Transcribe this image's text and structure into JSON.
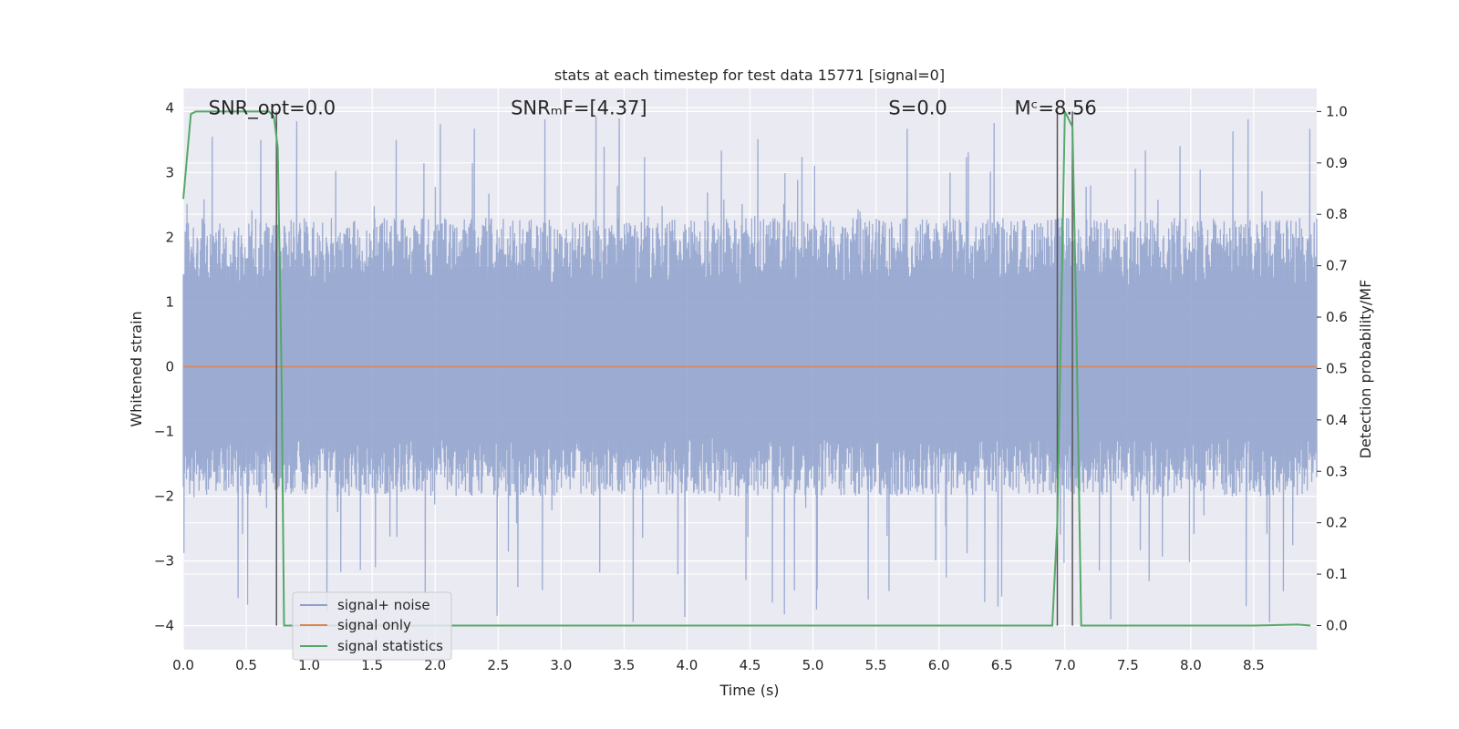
{
  "chart_data": {
    "type": "line",
    "title": "stats at each timestep for test data 15771 [signal=0]",
    "xlabel": "Time (s)",
    "ylabel_left": "Whitened strain",
    "ylabel_right": "Detection probability/MF",
    "xlim": [
      0.0,
      9.0
    ],
    "ylim_left": [
      -4.37,
      4.3
    ],
    "ylim_right": [
      -0.047,
      1.045
    ],
    "xticks": [
      "0.0",
      "0.5",
      "1.0",
      "1.5",
      "2.0",
      "2.5",
      "3.0",
      "3.5",
      "4.0",
      "4.5",
      "5.0",
      "5.5",
      "6.0",
      "6.5",
      "7.0",
      "7.5",
      "8.0",
      "8.5"
    ],
    "yticks_left": [
      "4",
      "3",
      "2",
      "1",
      "0",
      "−1",
      "−2",
      "−3",
      "−4"
    ],
    "yticks_right": [
      "1.0",
      "0.9",
      "0.8",
      "0.7",
      "0.6",
      "0.5",
      "0.4",
      "0.3",
      "0.2",
      "0.1",
      "0.0"
    ],
    "grid": true,
    "legend_position": "lower-left",
    "annotations": [
      {
        "text": "SNR_opt=0.0",
        "x": 0.2,
        "y": 4.0
      },
      {
        "text": "SNRₘF=[4.37]",
        "x": 2.6,
        "y": 4.0
      },
      {
        "text": "S=0.0",
        "x": 5.6,
        "y": 4.0
      },
      {
        "text": "Mᶜ=8.56",
        "x": 6.6,
        "y": 4.0
      }
    ],
    "series": [
      {
        "name": "signal+ noise",
        "color": "#8da0cb",
        "axis": "left",
        "noise_profile": {
          "x_start": 0.0,
          "x_end": 9.0,
          "typical_min": -2.0,
          "typical_max": 2.3,
          "extreme_min": -4.0,
          "extreme_max": 3.9
        }
      },
      {
        "name": "signal only",
        "color": "#dd8452",
        "axis": "left",
        "x": [
          0.0,
          9.0
        ],
        "y": [
          0.0,
          0.0
        ]
      },
      {
        "name": "signal statistics",
        "color": "#55a868",
        "axis": "right",
        "x": [
          0.0,
          0.06,
          0.1,
          0.2,
          0.3,
          0.4,
          0.5,
          0.6,
          0.68,
          0.72,
          0.75,
          0.78,
          0.8,
          0.85,
          1.0,
          2.0,
          3.0,
          4.0,
          5.0,
          6.0,
          6.5,
          6.9,
          6.94,
          7.0,
          7.06,
          7.09,
          7.13,
          7.2,
          8.0,
          8.5,
          8.85,
          8.95
        ],
        "y": [
          0.83,
          0.995,
          1.0,
          1.0,
          1.0,
          1.0,
          1.0,
          1.0,
          1.0,
          0.99,
          0.93,
          0.5,
          0.0,
          0.0,
          0.0,
          0.0,
          0.0,
          0.0,
          0.0,
          0.0,
          0.0,
          0.0,
          0.2,
          1.0,
          0.97,
          0.6,
          0.0,
          0.0,
          0.0,
          0.0,
          0.002,
          0.0
        ]
      }
    ],
    "markers": [
      {
        "x": 0.74,
        "y_right": [
          0.0,
          1.0
        ],
        "color": "#555555"
      },
      {
        "x": 6.94,
        "y_right": [
          0.0,
          1.0
        ],
        "color": "#555555"
      },
      {
        "x": 7.06,
        "y_right": [
          0.0,
          1.0
        ],
        "color": "#555555"
      }
    ]
  }
}
